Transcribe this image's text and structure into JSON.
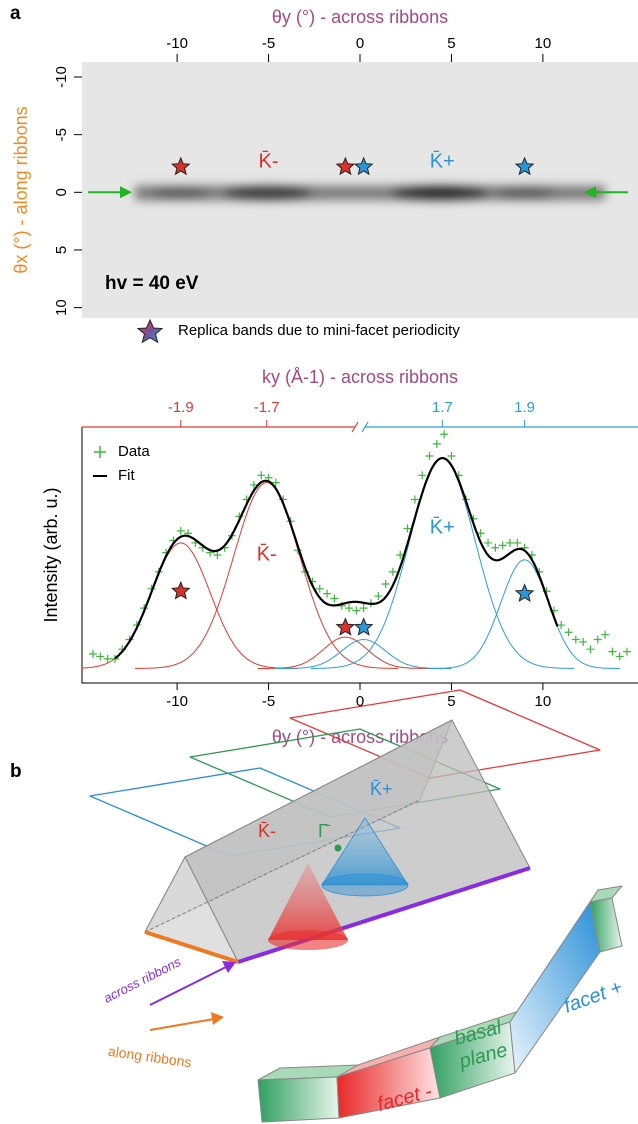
{
  "panel_labels": [
    "a",
    "b"
  ],
  "chart_data": [
    {
      "type": "image",
      "xlabel": "θy (°) - across ribbons",
      "xlabel_color": "#a34a86",
      "ylabel": "θx (°) - along ribbons",
      "ylabel_color": "#f08a24",
      "xlim": [
        -15.2,
        15.2
      ],
      "xticks": [
        -10,
        -5,
        0,
        5,
        10
      ],
      "ylim": [
        -11.3,
        10.9
      ],
      "yticks": [
        -10,
        -5,
        0,
        5,
        10
      ],
      "y_reversed": true,
      "arrow_y": 0,
      "arrow_color": "#22b422",
      "markers": [
        {
          "x": -9.8,
          "y": -2.2,
          "color": "#d7322b"
        },
        {
          "x": -0.8,
          "y": -2.2,
          "color": "#d7322b"
        },
        {
          "x": 0.2,
          "y": -2.2,
          "color": "#2a96d4"
        },
        {
          "x": 9.0,
          "y": -2.2,
          "color": "#2a96d4"
        }
      ],
      "labels": [
        {
          "text": "K̄-",
          "x": -5.0,
          "y": -2.6,
          "color": "#d7322b"
        },
        {
          "text": "K̄+",
          "x": 4.5,
          "y": -2.6,
          "color": "#2a96d4"
        }
      ],
      "annotation": "hv = 40 eV",
      "legend_text": "Replica bands due to mini-facet periodicity"
    },
    {
      "type": "line",
      "x2label": "ky (Å-1) - across ribbons",
      "x2label_color": "#a34a86",
      "xlabel": "θy (°) - across ribbons",
      "xlabel_color": "#a34a86",
      "ylabel": "Intensity (arb. u.)",
      "xlim": [
        -15.2,
        15.2
      ],
      "xticks": [
        -10,
        -5,
        0,
        5,
        10
      ],
      "ylim": [
        -0.06,
        1.0
      ],
      "x2_break": 0,
      "x2_segments": [
        {
          "color": "#e03a30",
          "ticks": [
            {
              "value": -9.8,
              "label": "-1.9"
            },
            {
              "value": -5.1,
              "label": "-1.7"
            }
          ]
        },
        {
          "color": "#2a9fd8",
          "ticks": [
            {
              "value": 4.5,
              "label": "1.7"
            },
            {
              "value": 9.0,
              "label": "1.9"
            }
          ]
        }
      ],
      "legend": "upper left",
      "series": [
        {
          "name": "Data",
          "color": "#3cb83c",
          "marker": "+",
          "x": [
            -14.6,
            -14.2,
            -13.8,
            -13.4,
            -13.0,
            -12.6,
            -12.2,
            -11.8,
            -11.4,
            -11.0,
            -10.6,
            -10.2,
            -9.8,
            -9.4,
            -9.0,
            -8.6,
            -8.2,
            -7.8,
            -7.4,
            -7.0,
            -6.6,
            -6.2,
            -5.8,
            -5.4,
            -5.0,
            -4.6,
            -4.2,
            -3.8,
            -3.4,
            -3.0,
            -2.6,
            -2.2,
            -1.8,
            -1.4,
            -1.0,
            -0.6,
            -0.2,
            0.2,
            0.6,
            1.0,
            1.4,
            1.8,
            2.2,
            2.6,
            3.0,
            3.4,
            3.8,
            4.2,
            4.6,
            5.0,
            5.4,
            5.8,
            6.2,
            6.6,
            7.0,
            7.4,
            7.8,
            8.2,
            8.6,
            9.0,
            9.4,
            9.8,
            10.2,
            10.6,
            11.0,
            11.4,
            11.8,
            12.2,
            12.6,
            13.0,
            13.4,
            13.8,
            14.2,
            14.6
          ],
          "values": [
            0.06,
            0.05,
            0.04,
            0.04,
            0.08,
            0.12,
            0.18,
            0.25,
            0.33,
            0.4,
            0.48,
            0.53,
            0.57,
            0.56,
            0.52,
            0.5,
            0.48,
            0.47,
            0.5,
            0.55,
            0.63,
            0.7,
            0.76,
            0.8,
            0.79,
            0.77,
            0.7,
            0.61,
            0.49,
            0.4,
            0.36,
            0.33,
            0.31,
            0.29,
            0.26,
            0.25,
            0.24,
            0.25,
            0.27,
            0.3,
            0.35,
            0.4,
            0.47,
            0.58,
            0.7,
            0.8,
            0.88,
            0.93,
            0.97,
            0.88,
            0.8,
            0.7,
            0.62,
            0.56,
            0.52,
            0.5,
            0.51,
            0.52,
            0.52,
            0.5,
            0.47,
            0.4,
            0.32,
            0.24,
            0.18,
            0.15,
            0.12,
            0.11,
            0.08,
            0.12,
            0.14,
            0.07,
            0.05,
            0.07
          ]
        },
        {
          "name": "Fit",
          "color": "#000000",
          "range": [
            -13.4,
            10.8
          ]
        }
      ],
      "peaks": [
        {
          "center": -9.8,
          "height": 0.52,
          "width": 1.6,
          "color": "#e03a30"
        },
        {
          "center": -5.1,
          "height": 0.77,
          "width": 1.8,
          "color": "#e03a30"
        },
        {
          "center": -0.8,
          "height": 0.13,
          "width": 1.2,
          "color": "#e03a30"
        },
        {
          "center": 0.2,
          "height": 0.12,
          "width": 1.2,
          "color": "#2a9fd8"
        },
        {
          "center": 4.5,
          "height": 0.87,
          "width": 1.8,
          "color": "#2a9fd8"
        },
        {
          "center": 9.0,
          "height": 0.45,
          "width": 1.3,
          "color": "#2a9fd8"
        }
      ],
      "markers": [
        {
          "x": -9.8,
          "y": 0.32,
          "color": "#d7322b"
        },
        {
          "x": -0.8,
          "y": 0.17,
          "color": "#d7322b"
        },
        {
          "x": 0.2,
          "y": 0.17,
          "color": "#2a96d4"
        },
        {
          "x": 9.0,
          "y": 0.31,
          "color": "#2a96d4"
        }
      ],
      "labels": [
        {
          "text": "K̄-",
          "x": -5.1,
          "y": 0.47,
          "color": "#d7322b"
        },
        {
          "text": "K̄+",
          "x": 4.5,
          "y": 0.58,
          "color": "#2a96d4"
        }
      ]
    }
  ],
  "diagram": {
    "gamma": "Γ̄",
    "k_plus": "K̄+",
    "k_minus": "K̄-",
    "across": "across ribbons",
    "along": "along ribbons",
    "facet_minus": "facet -",
    "basal_plane": [
      "basal",
      "plane"
    ],
    "facet_plus": "facet +"
  }
}
